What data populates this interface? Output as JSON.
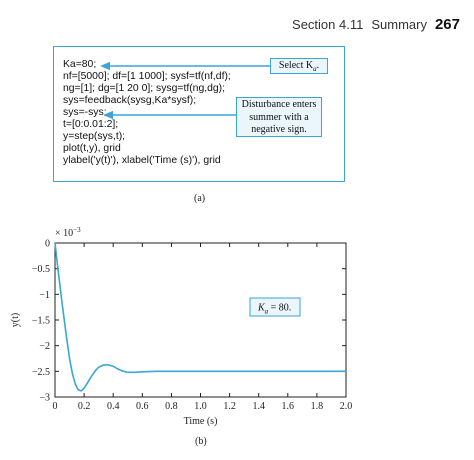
{
  "header": {
    "section": "Section 4.11",
    "title": "Summary",
    "page": "267"
  },
  "code": {
    "lines": [
      "Ka=80;",
      "nf=[5000]; df=[1 1000]; sysf=tf(nf,df);",
      "ng=[1]; dg=[1 20 0]; sysg=tf(ng,dg);",
      "sys=feedback(sysg,Ka*sysf);",
      "sys=-sys;",
      "t=[0:0.01:2];",
      "y=step(sys,t);",
      "plot(t,y), grid",
      "ylabel('y(t)'), xlabel('Time (s)'), grid"
    ]
  },
  "callouts": {
    "select": "Select K",
    "select_sub": "a",
    "disturbance": [
      "Disturbance enters",
      "summer with a",
      "negative sign."
    ]
  },
  "captions": {
    "a": "(a)",
    "b": "(b)"
  },
  "chart_data": {
    "type": "line",
    "scale_label": "× 10",
    "scale_exp": "−3",
    "xlabel": "Time (s)",
    "ylabel": "y(t)",
    "xlim": [
      0,
      2.0
    ],
    "ylim": [
      -3,
      0
    ],
    "xticks": [
      "0",
      "0.2",
      "0.4",
      "0.6",
      "0.8",
      "1.0",
      "1.2",
      "1.4",
      "1.6",
      "1.8",
      "2.0"
    ],
    "yticks": [
      "0",
      "−0.5",
      "−1",
      "−1.5",
      "−2",
      "−2.5",
      "−3"
    ],
    "grid": false,
    "annotation": {
      "k": "K",
      "sub": "a",
      "text": " = 80."
    },
    "series": [
      {
        "color": "#3aa6d8",
        "x": [
          0,
          0.02,
          0.05,
          0.08,
          0.1,
          0.12,
          0.14,
          0.16,
          0.18,
          0.2,
          0.22,
          0.25,
          0.28,
          0.3,
          0.33,
          0.36,
          0.4,
          0.43,
          0.46,
          0.5,
          0.55,
          0.6,
          0.7,
          0.8,
          1.0,
          1.5,
          2.0
        ],
        "y": [
          0,
          -0.5,
          -1.2,
          -1.85,
          -2.25,
          -2.55,
          -2.75,
          -2.86,
          -2.88,
          -2.83,
          -2.74,
          -2.6,
          -2.48,
          -2.42,
          -2.38,
          -2.37,
          -2.4,
          -2.45,
          -2.49,
          -2.52,
          -2.52,
          -2.51,
          -2.5,
          -2.5,
          -2.5,
          -2.5,
          -2.5
        ]
      }
    ]
  }
}
